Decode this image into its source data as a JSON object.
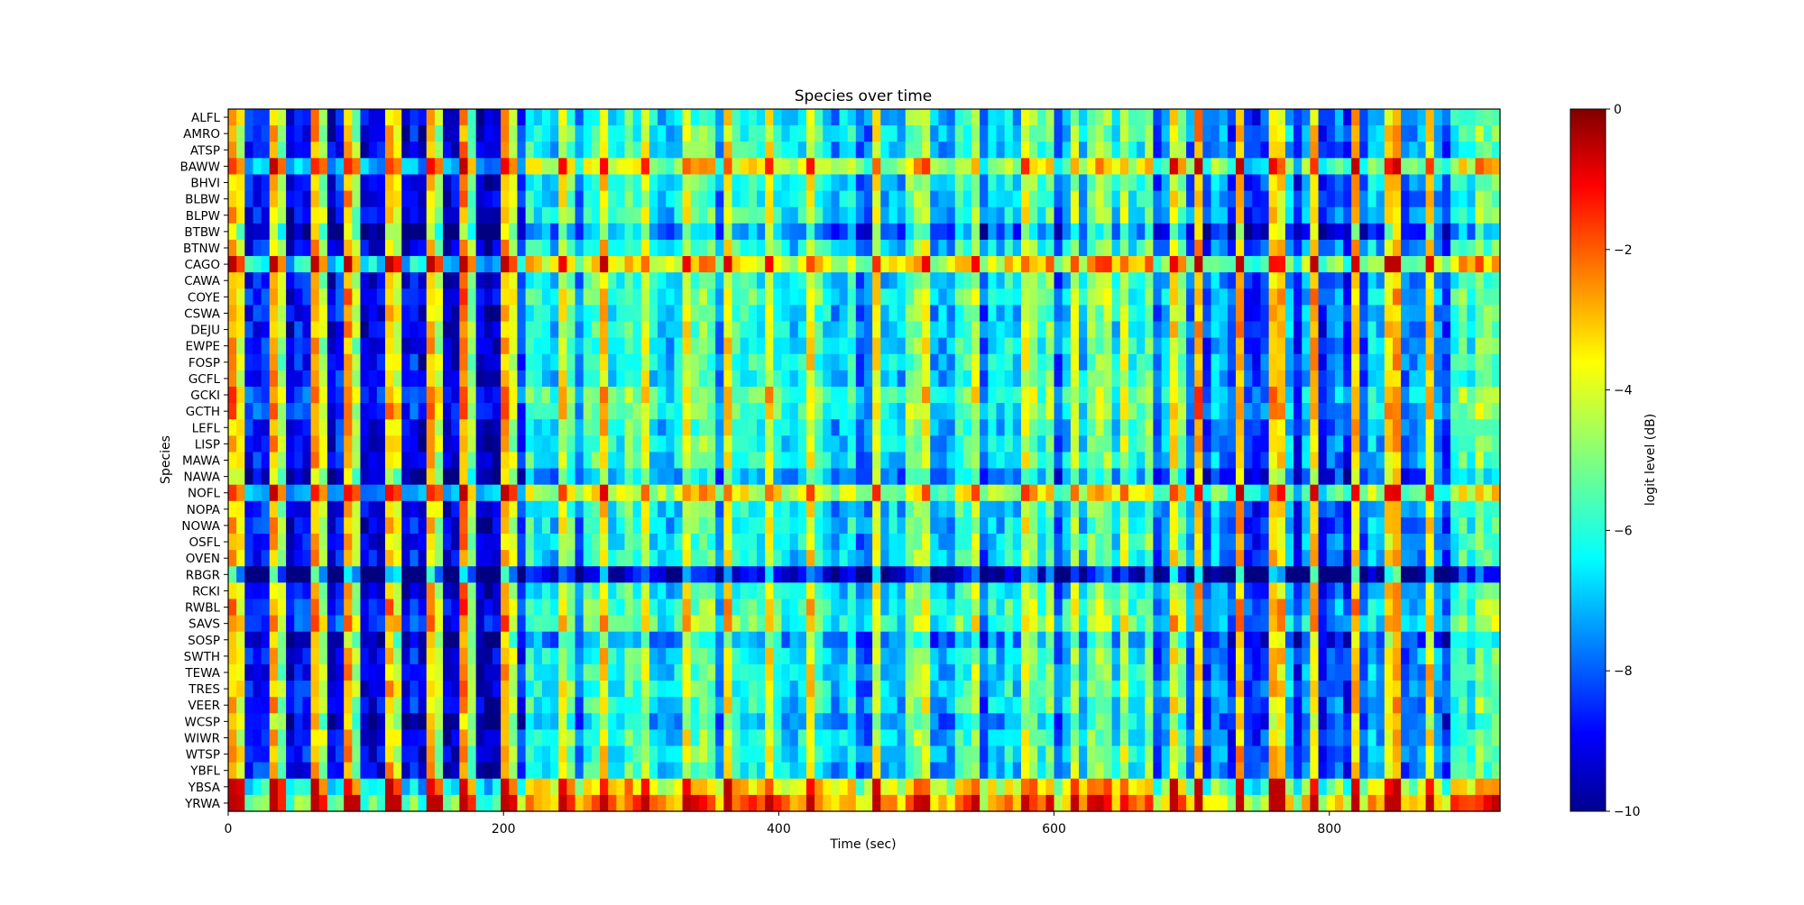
{
  "chart_data": {
    "type": "heatmap",
    "title": "Species over time",
    "xlabel": "Time (sec)",
    "ylabel": "Species",
    "xlim": [
      0,
      924
    ],
    "xticks": [
      0,
      200,
      400,
      600,
      800
    ],
    "time_step_sec": 6,
    "species": [
      "ALFL",
      "AMRO",
      "ATSP",
      "BAWW",
      "BHVI",
      "BLBW",
      "BLPW",
      "BTBW",
      "BTNW",
      "CAGO",
      "CAWA",
      "COYE",
      "CSWA",
      "DEJU",
      "EWPE",
      "FOSP",
      "GCFL",
      "GCKI",
      "GCTH",
      "LEFL",
      "LISP",
      "MAWA",
      "NAWA",
      "NOFL",
      "NOPA",
      "NOWA",
      "OSFL",
      "OVEN",
      "RBGR",
      "RCKI",
      "RWBL",
      "SAVS",
      "SOSP",
      "SWTH",
      "TEWA",
      "TRES",
      "VEER",
      "WCSP",
      "WIWR",
      "WTSP",
      "YBFL",
      "YBSA",
      "YRWA"
    ],
    "colorbar": {
      "label": "logit level (dB)",
      "range": [
        -10,
        0
      ],
      "ticks": [
        0,
        -2,
        -4,
        -6,
        -8,
        -10
      ],
      "tick_labels": [
        "0",
        "−2",
        "−4",
        "−6",
        "−8",
        "−10"
      ],
      "colormap": "jet"
    },
    "species_offsets_db": {
      "BAWW": 2.0,
      "CAGO": 2.5,
      "NOFL": 2.0,
      "YBSA": 2.5,
      "YRWA": 3.8,
      "RBGR": -3.0,
      "BTBW": -1.2,
      "SOSP": -0.8,
      "NAWA": -0.8,
      "WCSP": -0.6,
      "GCKI": 0.7,
      "SAVS": 0.7,
      "RWBL": 0.5,
      "GCTH": 0.5,
      "COYE": 0.3
    }
  }
}
